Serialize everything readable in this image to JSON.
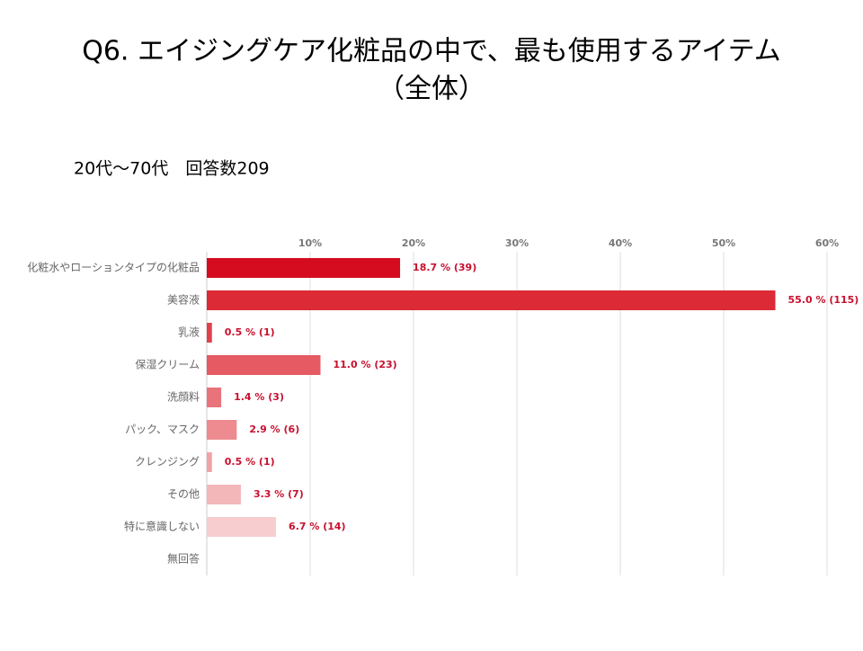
{
  "chart_data": {
    "type": "bar",
    "orientation": "horizontal",
    "title": [
      "Q6. エイジングケア化粧品の中で、最も使用するアイテム",
      "（全体）"
    ],
    "subtitle": "20代～70代　回答数209",
    "categories": [
      "化粧水やローションタイプの化粧品",
      "美容液",
      "乳液",
      "保湿クリーム",
      "洗顔料",
      "パック、マスク",
      "クレンジング",
      "その他",
      "特に意識しない",
      "無回答"
    ],
    "values": [
      18.7,
      55.0,
      0.5,
      11.0,
      1.4,
      2.9,
      0.5,
      3.3,
      6.7,
      null
    ],
    "value_labels": [
      "18.7 % (39)",
      "55.0 % (115)",
      "0.5 % (1)",
      "11.0 % (23)",
      "1.4 % (3)",
      "2.9 % (6)",
      "0.5 % (1)",
      "3.3 % (7)",
      "6.7 % (14)",
      null
    ],
    "colors": [
      "#d50c1f",
      "#dc2a36",
      "#e0424c",
      "#e55a63",
      "#e9737a",
      "#ed8b90",
      "#f0a2a6",
      "#f3b7ba",
      "#f7cdd0",
      "#fadfe1"
    ],
    "xlim": [
      0,
      60
    ],
    "xticks": [
      {
        "value": 10,
        "label": "10%"
      },
      {
        "value": 20,
        "label": "20%"
      },
      {
        "value": 30,
        "label": "30%"
      },
      {
        "value": 40,
        "label": "40%"
      },
      {
        "value": 50,
        "label": "50%"
      },
      {
        "value": 60,
        "label": "60%"
      }
    ],
    "grid": true
  }
}
